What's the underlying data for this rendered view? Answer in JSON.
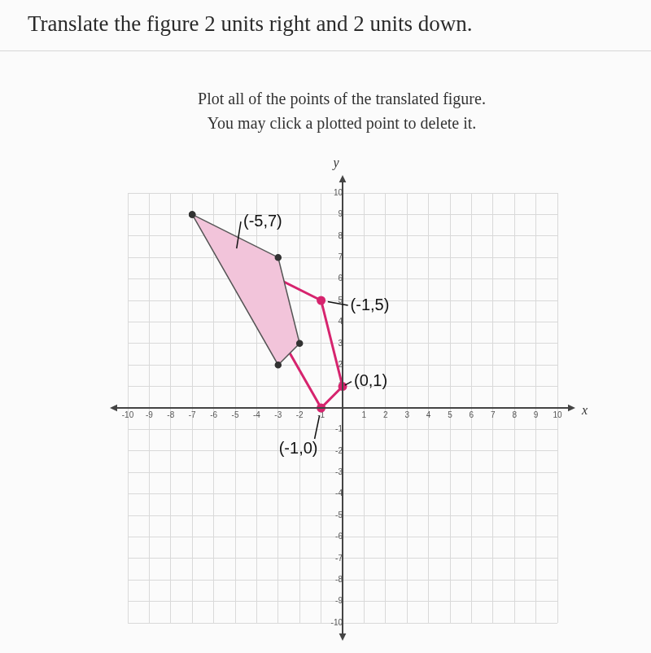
{
  "chart_data": {
    "type": "scatter",
    "title": "Translate the figure 2 units right and 2 units down.",
    "subtitle": [
      "Plot all of the points of the translated figure.",
      "You may click a plotted point to delete it."
    ],
    "xlabel": "x",
    "ylabel": "y",
    "xlim": [
      -10,
      10
    ],
    "ylim": [
      -10,
      10
    ],
    "xticks": [
      -10,
      -9,
      -8,
      -7,
      -6,
      -5,
      -4,
      -3,
      -2,
      -1,
      1,
      2,
      3,
      4,
      5,
      6,
      7,
      8,
      9,
      10
    ],
    "yticks": [
      -10,
      -9,
      -8,
      -7,
      -6,
      -5,
      -4,
      -3,
      -2,
      -1,
      1,
      2,
      3,
      4,
      5,
      6,
      7,
      8,
      9,
      10
    ],
    "grid": true,
    "series": [
      {
        "type": "area",
        "color": "#f2c4da",
        "marker": "circle",
        "x": [
          -7,
          -3,
          -2,
          -3
        ],
        "values": [
          9,
          7,
          3,
          2
        ]
      },
      {
        "type": "polygon",
        "color": "#d6246e",
        "marker": "circle",
        "x": [
          -5,
          -1,
          0,
          -1
        ],
        "values": [
          7,
          5,
          1,
          0
        ]
      }
    ],
    "annotations": [
      {
        "text": "(-5,7)",
        "x": -5,
        "y": 7
      },
      {
        "text": "(-1,5)",
        "x": -1,
        "y": 5
      },
      {
        "text": "(0,1)",
        "x": 0,
        "y": 1
      },
      {
        "text": "(-1,0)",
        "x": -1,
        "y": 0
      }
    ]
  }
}
